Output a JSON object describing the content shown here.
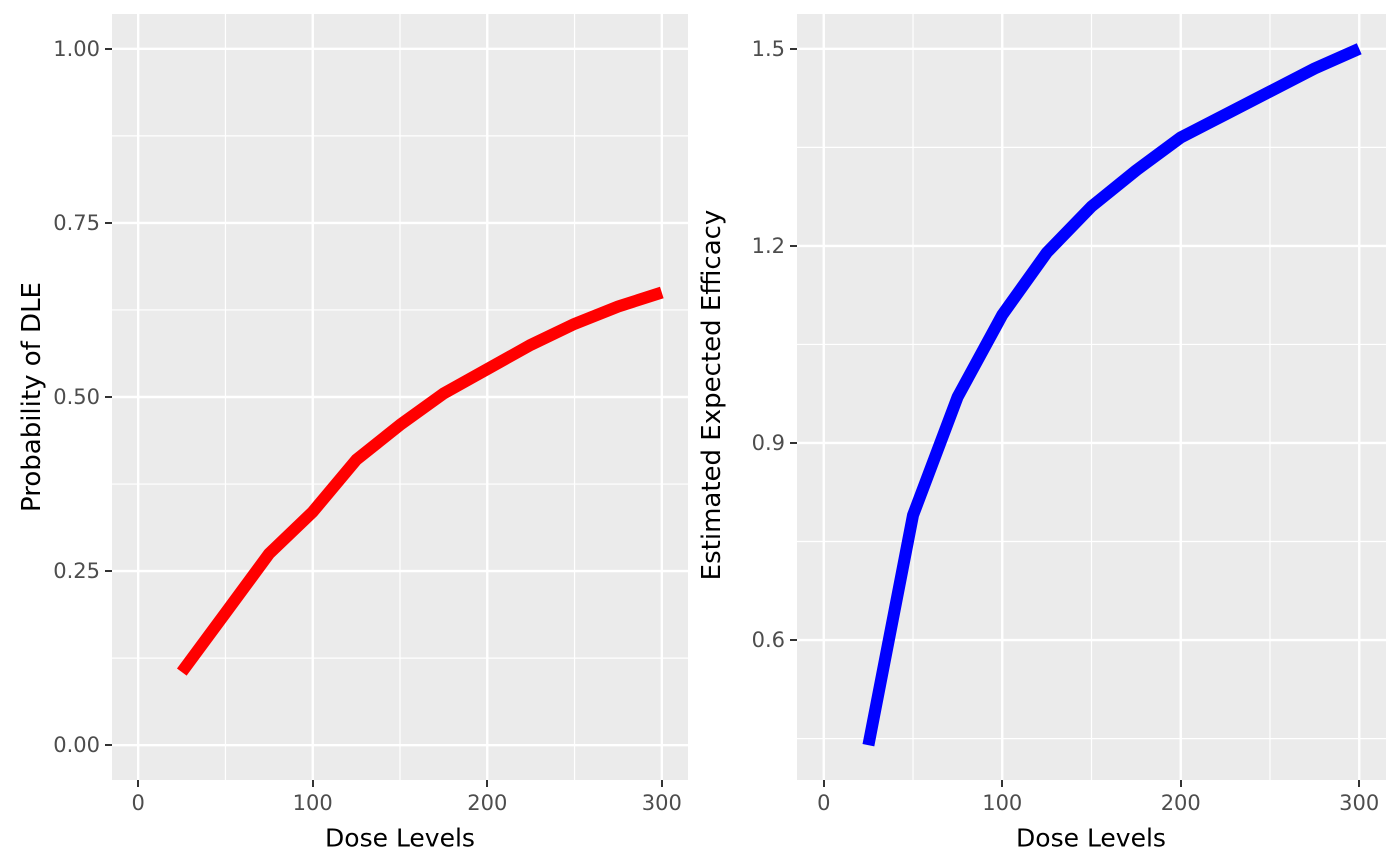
{
  "theme": {
    "figure_bg": "#FFFFFF",
    "panel_bg": "#EBEBEB",
    "grid_color": "#FFFFFF",
    "tick_label_color": "#4D4D4D",
    "axis_title_color": "#000000",
    "tick_mark_color": "#333333"
  },
  "chart_data": [
    {
      "type": "line",
      "title": "",
      "xlabel": "Dose Levels",
      "ylabel": "Probability of DLE",
      "xlim": [
        0,
        300
      ],
      "ylim": [
        0,
        1
      ],
      "grid": "major+minor",
      "legend": "none",
      "x_ticks": {
        "values": [
          0,
          100,
          200,
          300
        ],
        "labels": [
          "0",
          "100",
          "200",
          "300"
        ]
      },
      "y_ticks": {
        "values": [
          1.0,
          0.75,
          0.5,
          0.25,
          0.0
        ],
        "labels": [
          "1.00",
          "0.75",
          "0.50",
          "0.25",
          "0.00"
        ]
      },
      "series": [
        {
          "name": "Probability of DLE",
          "color": "#FF0000",
          "line_width": 12,
          "x": [
            25,
            50,
            75,
            100,
            125,
            150,
            175,
            200,
            225,
            250,
            275,
            300
          ],
          "y": [
            0.105,
            0.19,
            0.275,
            0.335,
            0.41,
            0.46,
            0.505,
            0.54,
            0.575,
            0.605,
            0.63,
            0.65
          ]
        }
      ]
    },
    {
      "type": "line",
      "title": "",
      "xlabel": "Dose Levels",
      "ylabel": "Estimated Expected Efficacy",
      "xlim": [
        0,
        300
      ],
      "ylim": [
        0.44,
        1.5
      ],
      "grid": "major+minor",
      "legend": "none",
      "x_ticks": {
        "values": [
          0,
          100,
          200,
          300
        ],
        "labels": [
          "0",
          "100",
          "200",
          "300"
        ]
      },
      "y_ticks": {
        "values": [
          1.5,
          1.2,
          0.9,
          0.6
        ],
        "labels": [
          "1.5",
          "1.2",
          "0.9",
          "0.6"
        ]
      },
      "series": [
        {
          "name": "Estimated Expected Efficacy",
          "color": "#0000FF",
          "line_width": 12,
          "x": [
            25,
            50,
            75,
            100,
            125,
            150,
            175,
            200,
            225,
            250,
            275,
            300
          ],
          "y": [
            0.44,
            0.79,
            0.97,
            1.095,
            1.19,
            1.26,
            1.315,
            1.365,
            1.4,
            1.435,
            1.47,
            1.5
          ]
        }
      ]
    }
  ]
}
